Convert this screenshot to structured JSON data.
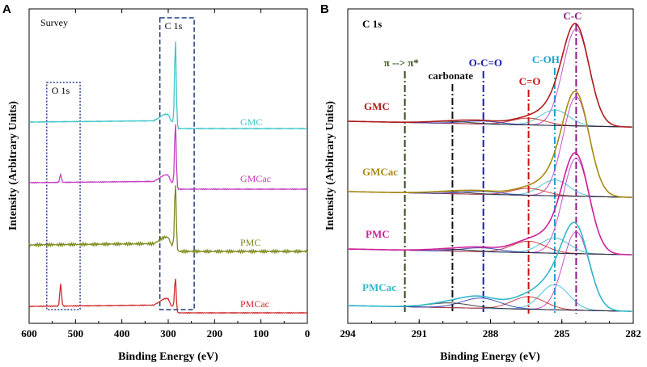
{
  "chart_data": [
    {
      "panel": "A",
      "type": "line",
      "title": "Survey",
      "xlabel": "Binding Energy (eV)",
      "ylabel": "Intensity (Arbitrary Units)",
      "xlim": [
        600,
        0
      ],
      "xticks": [
        600,
        500,
        400,
        300,
        200,
        100,
        0
      ],
      "regions": [
        {
          "label": "O 1s",
          "x_range": [
            562,
            490
          ],
          "style": "dotted"
        },
        {
          "label": "C 1s",
          "x_range": [
            318,
            244
          ],
          "style": "dashed"
        }
      ],
      "series": [
        {
          "name": "GMC",
          "color": "#3fc6c8",
          "baseline": 150,
          "c1s_peak": 103,
          "o1s_peak": 0
        },
        {
          "name": "GMCac",
          "color": "#c43ec4",
          "baseline": 225,
          "c1s_peak": 75,
          "o1s_peak": 10
        },
        {
          "name": "PMC",
          "color": "#7d8a1c",
          "baseline": 302,
          "c1s_peak": 78,
          "o1s_peak": 0
        },
        {
          "name": "PMCac",
          "color": "#cf2d2d",
          "baseline": 378,
          "c1s_peak": 36,
          "o1s_peak": 28
        }
      ]
    },
    {
      "panel": "B",
      "type": "line",
      "title": "C 1s",
      "xlabel": "Binding Energy (eV)",
      "ylabel": "Intensity (Arbitrary Units)",
      "xlim": [
        294,
        282
      ],
      "xticks": [
        294,
        291,
        288,
        285,
        282
      ],
      "reference_lines": [
        {
          "label": "π --> π*",
          "x": 291.6,
          "color": "#2f4a1a"
        },
        {
          "label": "carbonate",
          "x": 289.6,
          "color": "#111111"
        },
        {
          "label": "O-C=O",
          "x": 288.3,
          "color": "#1a1ab0"
        },
        {
          "label": "C=O",
          "x": 286.4,
          "color": "#cc1111"
        },
        {
          "label": "C-OH",
          "x": 285.3,
          "color": "#1a9fd0"
        },
        {
          "label": "C-C",
          "x": 284.4,
          "color": "#8a1a8a"
        }
      ],
      "series": [
        {
          "name": "GMC",
          "color": "#b01c1c",
          "baseline": 150,
          "peak_height": 120
        },
        {
          "name": "GMCac",
          "color": "#a88a10",
          "baseline": 237,
          "peak_height": 123
        },
        {
          "name": "PMC",
          "color": "#d0209a",
          "baseline": 308,
          "peak_height": 118
        },
        {
          "name": "PMCac",
          "color": "#30b8c8",
          "baseline": 378,
          "peak_height": 97
        }
      ]
    }
  ],
  "labels": {
    "panel_a": "A",
    "panel_b": "B"
  }
}
